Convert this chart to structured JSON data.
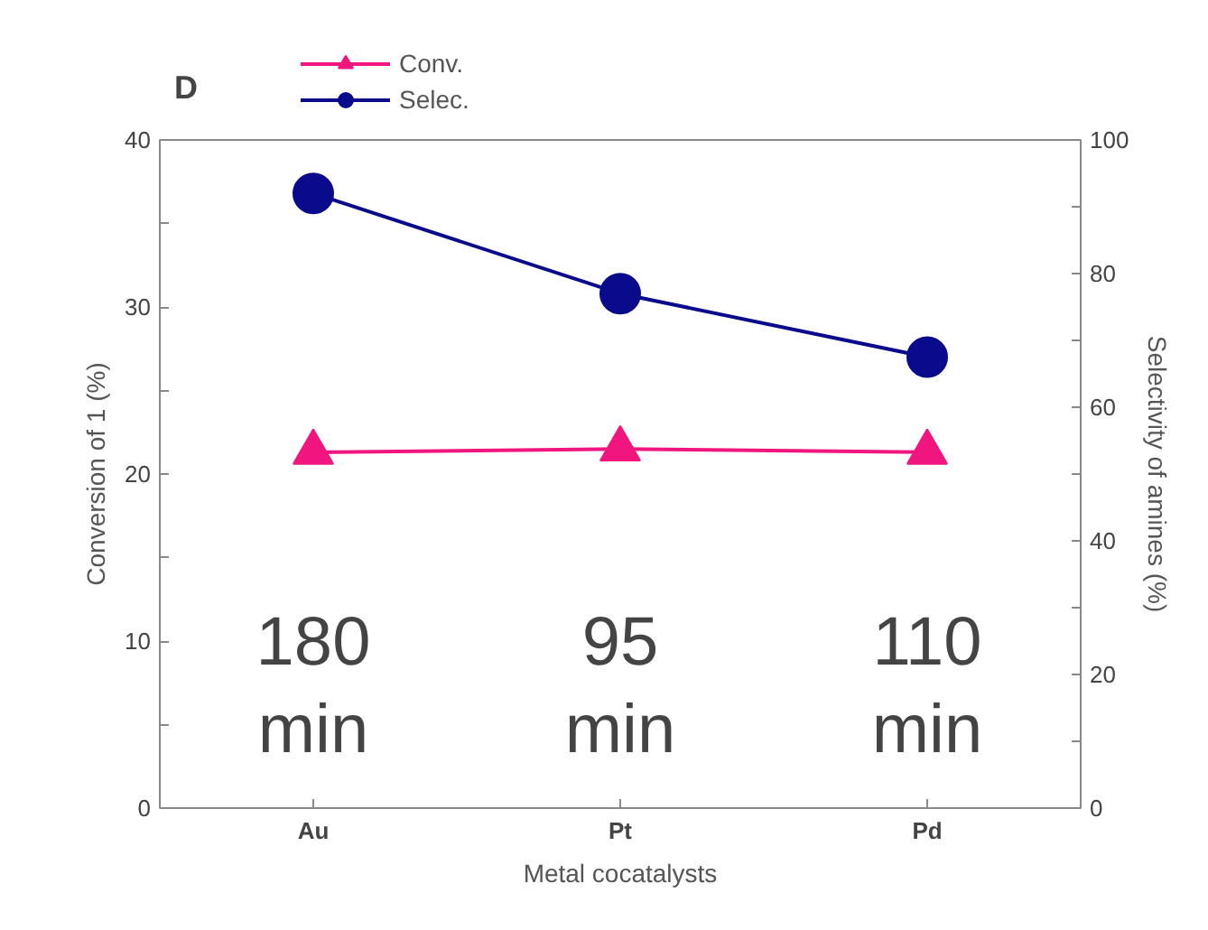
{
  "chart_data": {
    "type": "line",
    "xlabel": "Metal cocatalysts",
    "ylabel": "Conversion of 1 (%)",
    "y2label": "Selectivity of amines (%)",
    "categories": [
      "Au",
      "Pt",
      "Pd"
    ],
    "series": [
      {
        "name": "Conv.",
        "color": "#f0157f",
        "marker": "triangle",
        "values": [
          21.3,
          21.5,
          21.3
        ]
      },
      {
        "name": "Selec.",
        "color": "#0a0a8c",
        "marker": "circle",
        "axis": "y2",
        "values": [
          92,
          77,
          67.5
        ]
      }
    ],
    "ylim": [
      0,
      40
    ],
    "yticks": [
      0,
      {
        "value": 5,
        "label": null
      },
      10,
      {
        "value": 15,
        "label": null
      },
      20,
      {
        "value": 25,
        "label": null
      },
      30,
      {
        "value": 35,
        "label": null
      },
      40
    ],
    "y2lim": [
      0,
      100
    ],
    "y2ticks": [
      0,
      {
        "value": 10,
        "label": null
      },
      20,
      {
        "value": 30,
        "label": null
      },
      40,
      {
        "value": 50,
        "label": null
      },
      60,
      {
        "value": 70,
        "label": null
      },
      80,
      {
        "value": 90,
        "label": null
      },
      100
    ],
    "annotations": [
      "D",
      "180\nmin",
      "95\nmin",
      "110\nmin"
    ],
    "grid": false,
    "legend": "top left",
    "line_style": "solid"
  }
}
